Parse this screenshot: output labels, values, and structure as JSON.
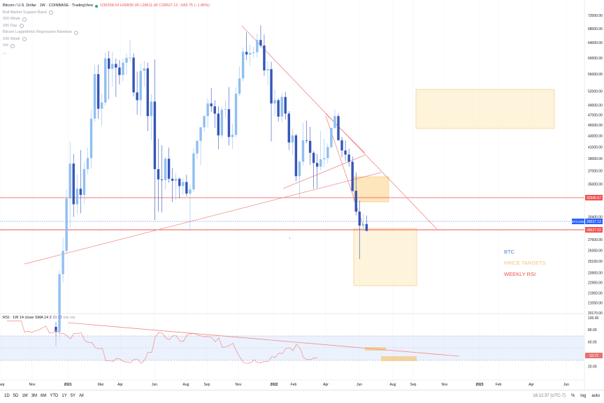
{
  "header": {
    "symbol_title": "Bitcoin / U.S. Dollar · 1W · COINBASE · TradingView",
    "ohlc": "O30258.04 H30830.06 L28611.00 C28637.12 −583.75 (−1.86%)",
    "indicators": [
      "Bull Market Support Band",
      "200 Week",
      "200 Day",
      "Bitcoin Logarithmic Regression Rainbow",
      "100 Week",
      "Vol"
    ],
    "collapse_icon": "chevron-up-icon"
  },
  "rsi_header": {
    "label": "RSI · 1W 14 close SMA 14 2",
    "value": "33.72",
    "tail": "n/a n/a"
  },
  "legend_annotations": [
    {
      "text": "BTC",
      "color": "#5b7bd5"
    },
    {
      "text": "PRICE TARGETS",
      "color": "#f3c57a"
    },
    {
      "text": "WEEKLY RSI",
      "color": "#ef5350"
    }
  ],
  "badges": {
    "upper": {
      "text": "32940.67",
      "color": "#ef5350"
    },
    "current": {
      "text": "28637.12",
      "symbol": "BTCUSD",
      "color": "#2962ff"
    },
    "lower": {
      "text": "28627.02",
      "color": "#ef5350"
    }
  },
  "bottom_bar": {
    "ranges": [
      "1D",
      "5D",
      "1M",
      "3M",
      "6M",
      "YTD",
      "1Y",
      "5Y",
      "All"
    ],
    "time": "16:12:37 (UTC-7)",
    "options": [
      "%",
      "log",
      "auto"
    ]
  },
  "chart_data": [
    {
      "type": "candlestick",
      "timeframe": "1W",
      "yscale": "log",
      "price_axis_ticks": [
        "72000.00",
        "68000.00",
        "64000.00",
        "60000.00",
        "56000.00",
        "52000.00",
        "49000.00",
        "47000.00",
        "45000.00",
        "43000.00",
        "41000.00",
        "39000.00",
        "37000.00",
        "35000.00",
        "33000.00",
        "30400.00",
        "27600.00",
        "26350.00",
        "25150.00",
        "23950.00",
        "22950.00",
        "21950.00",
        "21050.00",
        "20170.00"
      ],
      "time_axis_ticks": [
        "Sep",
        "Nov",
        "2021",
        "Mar",
        "Apr",
        "Jun",
        "Aug",
        "Sep",
        "Nov",
        "2022",
        "Feb",
        "Apr",
        "Jun",
        "Aug",
        "Sep",
        "Nov",
        "2023",
        "Feb",
        "Apr",
        "Jun"
      ],
      "candles": [
        {
          "o": 19000,
          "h": 19400,
          "l": 17500,
          "c": 18600
        },
        {
          "o": 18600,
          "h": 24200,
          "l": 18000,
          "c": 23800
        },
        {
          "o": 23800,
          "h": 27800,
          "l": 23000,
          "c": 26300
        },
        {
          "o": 26300,
          "h": 34200,
          "l": 26000,
          "c": 32900
        },
        {
          "o": 32900,
          "h": 41900,
          "l": 29000,
          "c": 38200
        },
        {
          "o": 38200,
          "h": 39800,
          "l": 30400,
          "c": 32100
        },
        {
          "o": 32100,
          "h": 36500,
          "l": 30800,
          "c": 34300
        },
        {
          "o": 34300,
          "h": 40500,
          "l": 30900,
          "c": 33400
        },
        {
          "o": 33400,
          "h": 38400,
          "l": 32200,
          "c": 37300
        },
        {
          "o": 37300,
          "h": 40900,
          "l": 36500,
          "c": 39100
        },
        {
          "o": 39100,
          "h": 48200,
          "l": 37400,
          "c": 46300
        },
        {
          "o": 46300,
          "h": 58300,
          "l": 45700,
          "c": 56000
        },
        {
          "o": 56000,
          "h": 58300,
          "l": 46300,
          "c": 48300
        },
        {
          "o": 48300,
          "h": 51500,
          "l": 44900,
          "c": 49600
        },
        {
          "o": 49600,
          "h": 61400,
          "l": 49000,
          "c": 59900
        },
        {
          "o": 59900,
          "h": 61800,
          "l": 50300,
          "c": 57300
        },
        {
          "o": 57300,
          "h": 61600,
          "l": 53100,
          "c": 58500
        },
        {
          "o": 58500,
          "h": 59900,
          "l": 50800,
          "c": 57600
        },
        {
          "o": 57600,
          "h": 59500,
          "l": 53600,
          "c": 55800
        },
        {
          "o": 55800,
          "h": 59800,
          "l": 54300,
          "c": 58800
        },
        {
          "o": 58800,
          "h": 61200,
          "l": 55800,
          "c": 60000
        },
        {
          "o": 60000,
          "h": 64900,
          "l": 59000,
          "c": 60100
        },
        {
          "o": 60100,
          "h": 61200,
          "l": 50900,
          "c": 51800
        },
        {
          "o": 51800,
          "h": 56600,
          "l": 47100,
          "c": 50100
        },
        {
          "o": 50100,
          "h": 58700,
          "l": 46800,
          "c": 56800
        },
        {
          "o": 56800,
          "h": 59300,
          "l": 53000,
          "c": 57400
        },
        {
          "o": 57400,
          "h": 58800,
          "l": 43900,
          "c": 46800
        },
        {
          "o": 46800,
          "h": 51400,
          "l": 42200,
          "c": 49800
        },
        {
          "o": 49800,
          "h": 59600,
          "l": 30000,
          "c": 37300
        },
        {
          "o": 37300,
          "h": 42500,
          "l": 31100,
          "c": 35700
        },
        {
          "o": 35700,
          "h": 41300,
          "l": 31000,
          "c": 35600
        },
        {
          "o": 35600,
          "h": 39300,
          "l": 34200,
          "c": 39000
        },
        {
          "o": 39000,
          "h": 40900,
          "l": 35200,
          "c": 35800
        },
        {
          "o": 35800,
          "h": 37500,
          "l": 32400,
          "c": 35500
        },
        {
          "o": 35500,
          "h": 36700,
          "l": 32700,
          "c": 35800
        },
        {
          "o": 35800,
          "h": 36000,
          "l": 32900,
          "c": 34700
        },
        {
          "o": 34700,
          "h": 35900,
          "l": 33400,
          "c": 35300
        },
        {
          "o": 35300,
          "h": 36400,
          "l": 33200,
          "c": 33600
        },
        {
          "o": 33600,
          "h": 35000,
          "l": 28800,
          "c": 34200
        },
        {
          "o": 34200,
          "h": 40800,
          "l": 33800,
          "c": 39900
        },
        {
          "o": 39900,
          "h": 42300,
          "l": 38900,
          "c": 42100
        },
        {
          "o": 42100,
          "h": 44700,
          "l": 38000,
          "c": 44600
        },
        {
          "o": 44600,
          "h": 47100,
          "l": 43700,
          "c": 46800
        },
        {
          "o": 46800,
          "h": 50500,
          "l": 44600,
          "c": 49400
        },
        {
          "o": 49400,
          "h": 52800,
          "l": 47600,
          "c": 48800
        },
        {
          "o": 48800,
          "h": 50100,
          "l": 44500,
          "c": 47300
        },
        {
          "o": 47300,
          "h": 48800,
          "l": 40600,
          "c": 43100
        },
        {
          "o": 43100,
          "h": 48800,
          "l": 42600,
          "c": 48100
        },
        {
          "o": 48100,
          "h": 50000,
          "l": 46500,
          "c": 48200
        },
        {
          "o": 48200,
          "h": 53000,
          "l": 41300,
          "c": 42800
        },
        {
          "o": 42800,
          "h": 45300,
          "l": 40700,
          "c": 43200
        },
        {
          "o": 43200,
          "h": 52900,
          "l": 42800,
          "c": 51500
        },
        {
          "o": 51500,
          "h": 57800,
          "l": 51000,
          "c": 55000
        },
        {
          "o": 55000,
          "h": 62800,
          "l": 54300,
          "c": 61600
        },
        {
          "o": 61600,
          "h": 67000,
          "l": 59500,
          "c": 60900
        },
        {
          "o": 60900,
          "h": 63400,
          "l": 58100,
          "c": 61300
        },
        {
          "o": 61300,
          "h": 63000,
          "l": 60000,
          "c": 61500
        },
        {
          "o": 61500,
          "h": 66600,
          "l": 60100,
          "c": 64800
        },
        {
          "o": 64800,
          "h": 69000,
          "l": 62800,
          "c": 63300
        },
        {
          "o": 63300,
          "h": 66300,
          "l": 55600,
          "c": 56900
        },
        {
          "o": 56900,
          "h": 59200,
          "l": 53300,
          "c": 57200
        },
        {
          "o": 57200,
          "h": 59000,
          "l": 42000,
          "c": 49400
        },
        {
          "o": 49400,
          "h": 52400,
          "l": 46900,
          "c": 50100
        },
        {
          "o": 50100,
          "h": 50500,
          "l": 45700,
          "c": 46700
        },
        {
          "o": 46700,
          "h": 51700,
          "l": 45600,
          "c": 50800
        },
        {
          "o": 50800,
          "h": 51900,
          "l": 46100,
          "c": 47300
        },
        {
          "o": 47300,
          "h": 47800,
          "l": 40500,
          "c": 41800
        },
        {
          "o": 41800,
          "h": 44400,
          "l": 39600,
          "c": 43100
        },
        {
          "o": 43100,
          "h": 43400,
          "l": 35400,
          "c": 36200
        },
        {
          "o": 36200,
          "h": 38900,
          "l": 32900,
          "c": 38500
        },
        {
          "o": 38500,
          "h": 45500,
          "l": 37900,
          "c": 42200
        },
        {
          "o": 42200,
          "h": 45900,
          "l": 41700,
          "c": 42100
        },
        {
          "o": 42100,
          "h": 44700,
          "l": 38000,
          "c": 40000
        },
        {
          "o": 40000,
          "h": 40300,
          "l": 34300,
          "c": 38300
        },
        {
          "o": 38300,
          "h": 39800,
          "l": 34400,
          "c": 37700
        },
        {
          "o": 37700,
          "h": 43900,
          "l": 37100,
          "c": 38900
        },
        {
          "o": 38900,
          "h": 42500,
          "l": 37600,
          "c": 39100
        },
        {
          "o": 39100,
          "h": 41700,
          "l": 38200,
          "c": 41000
        },
        {
          "o": 41000,
          "h": 44400,
          "l": 40700,
          "c": 44500
        },
        {
          "o": 44500,
          "h": 48200,
          "l": 44200,
          "c": 46800
        },
        {
          "o": 46800,
          "h": 47300,
          "l": 42200,
          "c": 42200
        },
        {
          "o": 42200,
          "h": 42800,
          "l": 39200,
          "c": 40400
        },
        {
          "o": 40400,
          "h": 42200,
          "l": 38600,
          "c": 39700
        },
        {
          "o": 39700,
          "h": 40700,
          "l": 37700,
          "c": 38500
        },
        {
          "o": 38500,
          "h": 39400,
          "l": 33800,
          "c": 34000
        },
        {
          "o": 34000,
          "h": 36800,
          "l": 30600,
          "c": 31100
        },
        {
          "o": 31100,
          "h": 32600,
          "l": 25400,
          "c": 29300
        },
        {
          "o": 29300,
          "h": 30800,
          "l": 28600,
          "c": 29500
        },
        {
          "o": 29500,
          "h": 30600,
          "l": 28600,
          "c": 28637
        }
      ],
      "rsi": {
        "value": 33.72,
        "upper": 70,
        "lower": 30,
        "axis_ticks": [
          "100.00",
          "80.00",
          "60.00",
          "40.00",
          "20.00"
        ]
      },
      "price_targets": [
        {
          "from": 45000,
          "to": 58000
        },
        {
          "from": 32200,
          "to": 35200
        },
        {
          "from": 23500,
          "to": 28700
        }
      ]
    }
  ]
}
